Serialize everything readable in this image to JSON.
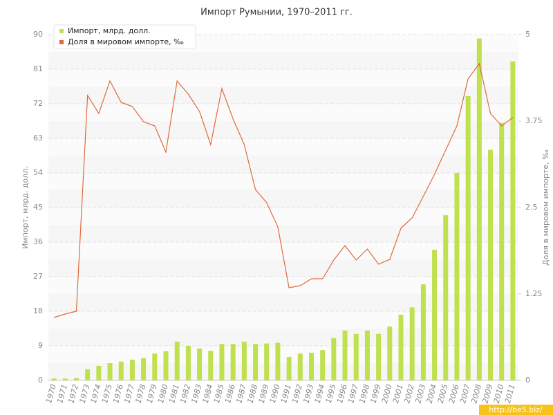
{
  "chart_data": {
    "type": "combo",
    "title": "Импорт Румынии, 1970–2011 гг.",
    "ylabel": "Импорт, млрд. долл.",
    "y2label": "Доля в мировом импорте, ‰",
    "categories": [
      "1970",
      "1971",
      "1972",
      "1973",
      "1974",
      "1975",
      "1976",
      "1977",
      "1978",
      "1979",
      "1980",
      "1981",
      "1982",
      "1983",
      "1984",
      "1985",
      "1986",
      "1987",
      "1988",
      "1989",
      "1990",
      "1991",
      "1992",
      "1993",
      "1994",
      "1995",
      "1996",
      "1997",
      "1998",
      "1999",
      "2000",
      "2001",
      "2002",
      "2003",
      "2004",
      "2005",
      "2006",
      "2007",
      "2008",
      "2009",
      "2010",
      "2011"
    ],
    "series": [
      {
        "name": "Импорт, млрд. долл.",
        "color": "#bfe04f",
        "type": "bar",
        "values": [
          0.5,
          0.5,
          0.6,
          2.9,
          3.8,
          4.5,
          4.9,
          5.4,
          5.8,
          7.0,
          7.6,
          10.1,
          9.0,
          8.3,
          7.7,
          9.5,
          9.5,
          10.1,
          9.5,
          9.6,
          9.8,
          6.1,
          7.0,
          7.2,
          7.9,
          11.0,
          13.0,
          12.1,
          13.0,
          12.1,
          14.0,
          17.1,
          19.0,
          25.0,
          34.0,
          43.0,
          54.0,
          74.0,
          89.0,
          60.0,
          67.0,
          83.0
        ]
      },
      {
        "name": "Доля в мировом импорте, ‰",
        "color": "#e06a3a",
        "type": "line",
        "axis": "y2",
        "values": [
          0.91,
          0.96,
          1.0,
          4.12,
          3.86,
          4.33,
          4.02,
          3.96,
          3.74,
          3.68,
          3.3,
          4.33,
          4.14,
          3.89,
          3.41,
          4.22,
          3.78,
          3.41,
          2.76,
          2.57,
          2.22,
          1.34,
          1.37,
          1.47,
          1.47,
          1.74,
          1.95,
          1.74,
          1.9,
          1.68,
          1.75,
          2.2,
          2.35,
          2.66,
          2.98,
          3.33,
          3.68,
          4.36,
          4.58,
          3.86,
          3.68,
          3.8
        ]
      }
    ],
    "ylim": [
      0,
      90
    ],
    "yticks": [
      0,
      9,
      18,
      27,
      36,
      45,
      54,
      63,
      72,
      81,
      90
    ],
    "y2lim": [
      0,
      5
    ],
    "y2ticks": [
      0,
      1.25,
      2.5,
      3.75,
      5
    ],
    "grid": true,
    "legend": "top-left"
  },
  "watermark": "http://be5.biz/"
}
